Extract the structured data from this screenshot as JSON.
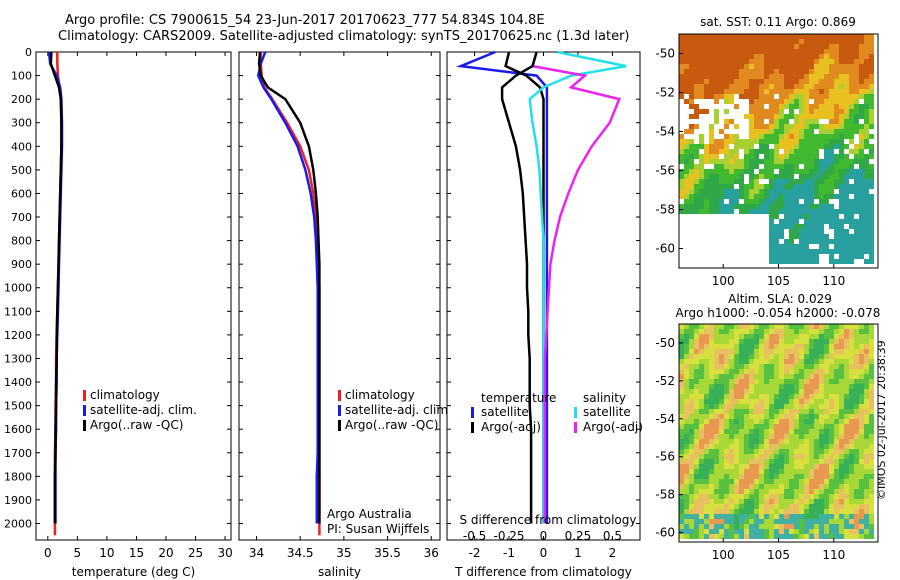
{
  "header": {
    "line1": "Argo profile: CS 7900615_54 23-Jun-2017 20170623_777 54.834S 104.8E",
    "line2": "Climatology: CARS2009. Satellite-adjusted climatology: synTS_20170625.nc (1.3d later)"
  },
  "side_label": "©IMOS 02-Jul-2017 20:38:39",
  "colors": {
    "red": "#ee2020",
    "blue": "#1a1aee",
    "black": "#000000",
    "cyan": "#22e0e8",
    "magenta": "#ee22ee"
  },
  "chart_data": [
    {
      "type": "line",
      "id": "temperature",
      "xlabel": "temperature (deg C)",
      "xlim": [
        -2,
        31
      ],
      "xticks": [
        0,
        5,
        10,
        15,
        20,
        25,
        30
      ],
      "ylim": [
        0,
        2070
      ],
      "yticks": [
        0,
        100,
        200,
        300,
        400,
        500,
        600,
        700,
        800,
        900,
        1000,
        1100,
        1200,
        1300,
        1400,
        1500,
        1600,
        1700,
        1800,
        1900,
        2000
      ],
      "y_inverted": true,
      "legend": [
        "climatology",
        "satellite-adj. clim.",
        "Argo(..raw -QC)"
      ],
      "series": [
        {
          "name": "climatology",
          "color": "red",
          "x": [
            1.6,
            1.6,
            1.7,
            2.0,
            2.2,
            2.3,
            2.3,
            2.2,
            2.1,
            2.0,
            1.9,
            1.8,
            1.7,
            1.6,
            1.5,
            1.4,
            1.4,
            1.3,
            1.3,
            1.2,
            1.2,
            1.2
          ],
          "y": [
            0,
            50,
            100,
            150,
            200,
            300,
            400,
            500,
            600,
            700,
            800,
            900,
            1000,
            1100,
            1200,
            1300,
            1400,
            1500,
            1600,
            1700,
            1800,
            2050
          ]
        },
        {
          "name": "satellite-adj. clim.",
          "color": "blue",
          "x": [
            0.2,
            0.4,
            1.5,
            2.1,
            2.3,
            2.4,
            2.4,
            2.3,
            2.2,
            2.1,
            2.0,
            1.9,
            1.8,
            1.7,
            1.6,
            1.5,
            1.5,
            1.4,
            1.4,
            1.3,
            1.3,
            1.3
          ],
          "y": [
            0,
            50,
            100,
            150,
            200,
            300,
            400,
            500,
            600,
            700,
            800,
            900,
            1000,
            1100,
            1200,
            1300,
            1400,
            1500,
            1600,
            1700,
            1800,
            2000
          ]
        },
        {
          "name": "Argo(..raw -QC)",
          "color": "black",
          "x": [
            0.6,
            0.5,
            1.2,
            1.9,
            2.2,
            2.3,
            2.3,
            2.2,
            2.1,
            2.0,
            1.9,
            1.8,
            1.7,
            1.6,
            1.5,
            1.5,
            1.4,
            1.4,
            1.3,
            1.3,
            1.2,
            1.2
          ],
          "y": [
            0,
            50,
            100,
            150,
            200,
            300,
            400,
            500,
            600,
            700,
            800,
            900,
            1000,
            1100,
            1200,
            1300,
            1400,
            1500,
            1600,
            1700,
            1800,
            2000
          ]
        }
      ]
    },
    {
      "type": "line",
      "id": "salinity",
      "xlabel": "salinity",
      "xlim": [
        33.8,
        36.1
      ],
      "xticks": [
        34,
        34.5,
        35,
        35.5,
        36
      ],
      "xtick_labels": [
        "34",
        "34.5",
        "35",
        "35.5",
        "36"
      ],
      "ylim": [
        0,
        2070
      ],
      "y_inverted": true,
      "legend": [
        "climatology",
        "satellite-adj. clim.",
        "Argo(..raw -QC)"
      ],
      "annotation": [
        "Argo Australia",
        "PI: Susan Wijffels"
      ],
      "series": [
        {
          "name": "climatology",
          "color": "red",
          "x": [
            34.05,
            34.05,
            34.06,
            34.09,
            34.18,
            34.35,
            34.5,
            34.6,
            34.65,
            34.68,
            34.7,
            34.71,
            34.72,
            34.72,
            34.72,
            34.72,
            34.72,
            34.72,
            34.72,
            34.72,
            34.72,
            34.72
          ],
          "y": [
            0,
            50,
            100,
            150,
            200,
            300,
            400,
            500,
            600,
            700,
            800,
            900,
            1000,
            1100,
            1200,
            1300,
            1400,
            1500,
            1600,
            1700,
            1800,
            2050
          ]
        },
        {
          "name": "satellite-adj. clim.",
          "color": "blue",
          "x": [
            34.1,
            34.05,
            34.02,
            34.08,
            34.17,
            34.33,
            34.47,
            34.56,
            34.62,
            34.66,
            34.68,
            34.69,
            34.7,
            34.7,
            34.7,
            34.7,
            34.7,
            34.7,
            34.7,
            34.7,
            34.69,
            34.69
          ],
          "y": [
            0,
            50,
            100,
            150,
            200,
            300,
            400,
            500,
            600,
            700,
            800,
            900,
            1000,
            1100,
            1200,
            1300,
            1400,
            1500,
            1600,
            1700,
            1800,
            2000
          ]
        },
        {
          "name": "Argo(..raw -QC)",
          "color": "black",
          "x": [
            34.04,
            34.03,
            34.05,
            34.13,
            34.33,
            34.5,
            34.6,
            34.65,
            34.68,
            34.7,
            34.71,
            34.72,
            34.72,
            34.72,
            34.72,
            34.72,
            34.72,
            34.72,
            34.72,
            34.72,
            34.72,
            34.72
          ],
          "y": [
            0,
            50,
            100,
            150,
            200,
            300,
            400,
            500,
            600,
            700,
            800,
            900,
            1000,
            1100,
            1200,
            1300,
            1400,
            1500,
            1600,
            1700,
            1800,
            2000
          ]
        }
      ]
    },
    {
      "type": "line",
      "id": "difference",
      "xlabel": "T difference from climatology",
      "xlabel_top": "S difference from climatology",
      "xlim": [
        -2.8,
        2.8
      ],
      "xticks": [
        -2,
        -1,
        0,
        1,
        2
      ],
      "top_ticks": [
        -0.5,
        -0.25,
        0,
        0.25,
        0.5
      ],
      "top_tick_labels": [
        "-0.5",
        "-0.25",
        "0",
        "0.25",
        "0.5"
      ],
      "ylim": [
        0,
        2070
      ],
      "y_inverted": true,
      "legend_left_title": "temperature",
      "legend_right_title": "salinity",
      "legend_left": [
        "satellite",
        "Argo(-adj)"
      ],
      "legend_right": [
        "satellite",
        "Argo(-adj)"
      ],
      "series": [
        {
          "name": "T satellite",
          "color": "blue",
          "x": [
            -1.4,
            -2.4,
            -0.2,
            0.1,
            0.1,
            0.1,
            0.1,
            0.1,
            0.1,
            0.1,
            0.1,
            0.1,
            0.1,
            0.1,
            0.1,
            0.1,
            0.1,
            0.1,
            0.1,
            0.1,
            0.1,
            0.1
          ],
          "y": [
            0,
            60,
            100,
            150,
            200,
            300,
            400,
            500,
            600,
            700,
            800,
            900,
            1000,
            1100,
            1200,
            1300,
            1400,
            1500,
            1600,
            1700,
            1800,
            2000
          ]
        },
        {
          "name": "T Argo(-adj)",
          "color": "black",
          "x": [
            -1.0,
            -1.1,
            -0.5,
            -0.1,
            0.0,
            0.0,
            0.0,
            0.0,
            0.0,
            0.0,
            0.0,
            0.0,
            0.0,
            0.0,
            0.0,
            0.0,
            0.0,
            0.0,
            0.0,
            0.0,
            0.0,
            0.0
          ],
          "y": [
            0,
            60,
            100,
            150,
            200,
            300,
            400,
            500,
            600,
            700,
            800,
            900,
            1000,
            1100,
            1200,
            1300,
            1400,
            1500,
            1600,
            1700,
            1800,
            2000
          ]
        },
        {
          "name": "S satellite",
          "color": "cyan",
          "x": [
            0.1,
            0.6,
            0.2,
            0.0,
            -0.1,
            -0.08,
            -0.05,
            -0.03,
            -0.02,
            -0.01,
            0.0,
            0.0,
            0.0,
            0.0,
            0.0,
            0.0,
            0.0,
            0.0,
            0.0,
            0.0,
            0.0,
            0.0
          ],
          "y": [
            0,
            60,
            100,
            150,
            200,
            300,
            400,
            500,
            600,
            700,
            800,
            900,
            1000,
            1100,
            1200,
            1300,
            1400,
            1500,
            1600,
            1700,
            1800,
            2000
          ]
        },
        {
          "name": "S Argo(-adj)",
          "color": "magenta",
          "x": [
            -0.05,
            -0.08,
            0.3,
            0.2,
            0.55,
            0.48,
            0.35,
            0.25,
            0.18,
            0.12,
            0.08,
            0.05,
            0.04,
            0.03,
            0.02,
            0.01,
            0.01,
            0.01,
            0.01,
            0.01,
            0.01,
            0.01
          ],
          "y": [
            0,
            60,
            100,
            150,
            200,
            300,
            400,
            500,
            600,
            700,
            800,
            900,
            1000,
            1100,
            1200,
            1300,
            1400,
            1500,
            1600,
            1700,
            1800,
            2000
          ]
        },
        {
          "name": "S Argo raw",
          "color": "black",
          "x": [
            -0.05,
            -0.08,
            -0.2,
            -0.3,
            -0.3,
            -0.25,
            -0.2,
            -0.17,
            -0.15,
            -0.14,
            -0.13,
            -0.12,
            -0.12,
            -0.11,
            -0.11,
            -0.1,
            -0.1,
            -0.1,
            -0.09,
            -0.09,
            -0.09,
            -0.09
          ],
          "y": [
            0,
            60,
            100,
            150,
            200,
            300,
            400,
            500,
            600,
            700,
            800,
            900,
            1000,
            1100,
            1200,
            1300,
            1400,
            1500,
            1600,
            1700,
            1800,
            2000
          ]
        }
      ]
    },
    {
      "type": "heatmap",
      "id": "sst-map",
      "title": "sat. SST: 0.11  Argo: 0.869",
      "xlim": [
        96,
        114
      ],
      "ylim": [
        -61,
        -49
      ],
      "xticks": [
        100,
        105,
        110
      ],
      "yticks": [
        -50,
        -52,
        -54,
        -56,
        -58,
        -60
      ]
    },
    {
      "type": "heatmap",
      "id": "sla-map",
      "title_line1": "Altim. SLA: 0.029",
      "title_line2": "Argo h1000: -0.054 h2000: -0.078",
      "xlim": [
        96,
        114
      ],
      "ylim": [
        -60.5,
        -49
      ],
      "xticks": [
        100,
        105,
        110
      ],
      "yticks": [
        -50,
        -52,
        -54,
        -56,
        -58,
        -60
      ]
    }
  ]
}
